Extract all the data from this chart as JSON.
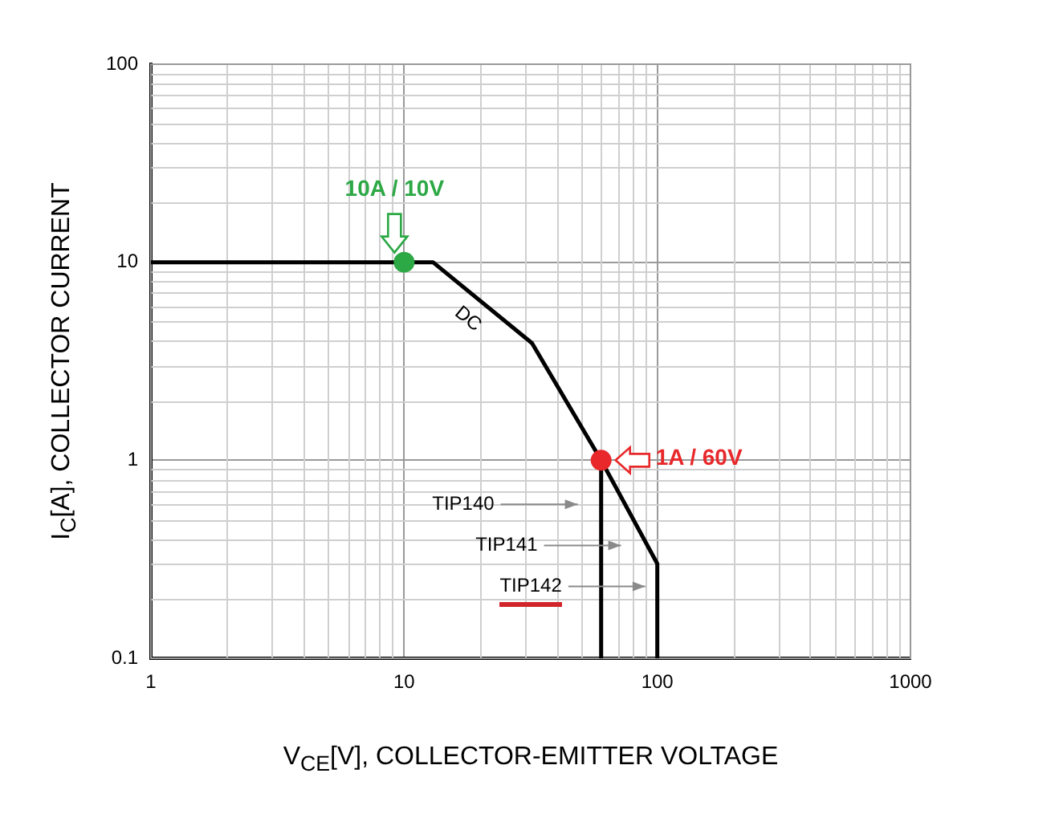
{
  "chart_data": {
    "type": "line",
    "xlabel": "V$_{CE}$[V], COLLECTOR-EMITTER VOLTAGE",
    "ylabel": "I$_{C}$[A], COLLECTOR CURRENT",
    "log": "xy",
    "grid": true,
    "legend": false,
    "marker": "none",
    "line_style": "solid",
    "xlim": [
      1,
      1000
    ],
    "xticks": [
      1,
      10,
      100,
      1000
    ],
    "ylim": [
      0.1,
      100
    ],
    "yticks": [
      0.1,
      1,
      10,
      100
    ],
    "series": [
      {
        "name": "DC",
        "color": "#000000",
        "x": [
          1,
          13,
          32,
          60,
          100,
          100
        ],
        "values": [
          10,
          10,
          3.9,
          1,
          0.3,
          0.1
        ]
      },
      {
        "color": "#000000",
        "x": [
          60,
          60
        ],
        "values": [
          1,
          0.1
        ]
      },
      {
        "type": "scatter",
        "marker": "circle",
        "color": "#2ca845",
        "x": [
          10
        ],
        "values": [
          10
        ]
      },
      {
        "type": "scatter",
        "marker": "circle",
        "color": "#e8282b",
        "x": [
          60
        ],
        "values": [
          1
        ]
      }
    ],
    "annotations": [
      {
        "text": "10A / 10V",
        "x": 10,
        "y": 10
      },
      {
        "text": "1A / 60V",
        "x": 60,
        "y": 1
      },
      "TIP140",
      "TIP141",
      "TIP142"
    ]
  }
}
